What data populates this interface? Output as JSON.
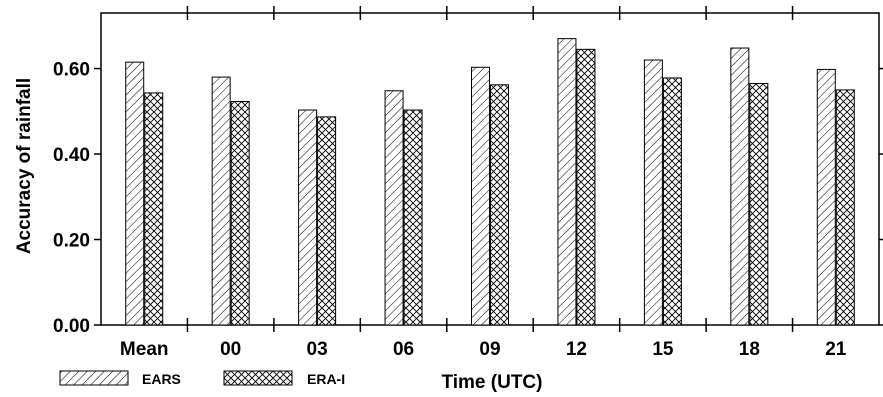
{
  "chart_data": {
    "type": "bar",
    "categories": [
      "Mean",
      "00",
      "03",
      "06",
      "09",
      "12",
      "15",
      "18",
      "21"
    ],
    "series": [
      {
        "name": "EARS",
        "values": [
          0.615,
          0.58,
          0.503,
          0.548,
          0.603,
          0.67,
          0.62,
          0.648,
          0.598
        ],
        "pattern": "diagonal-hatch"
      },
      {
        "name": "ERA-I",
        "values": [
          0.543,
          0.523,
          0.487,
          0.503,
          0.562,
          0.645,
          0.578,
          0.565,
          0.55
        ],
        "pattern": "cross-hatch"
      }
    ],
    "xlabel": "Time (UTC)",
    "ylabel": "Accuracy of rainfall",
    "ylim": [
      0,
      0.73
    ],
    "yticks": [
      "0.00",
      "0.20",
      "0.40",
      "0.60"
    ],
    "grid": false,
    "legend_position": "bottom-left"
  }
}
